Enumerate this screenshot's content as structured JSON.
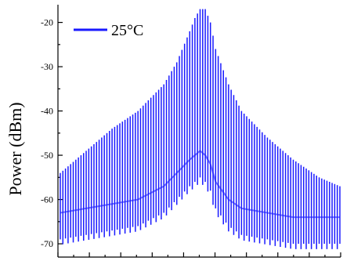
{
  "chart_data": {
    "type": "line",
    "title": "",
    "xlabel": "",
    "ylabel": "Power (dBm)",
    "ylim": [
      -73,
      -16
    ],
    "yticks": [
      "-20",
      "-30",
      "-40",
      "-50",
      "-60",
      "-70"
    ],
    "ytick_values": [
      -20,
      -30,
      -40,
      -50,
      -60,
      -70
    ],
    "grid": false,
    "legend_position": "top-left",
    "series": [
      {
        "name": "25°C",
        "color": "#1a1aff",
        "description_of_form": "longitudinal mode comb",
        "x_index": [
          0,
          10,
          20,
          30,
          40,
          45,
          50,
          52,
          54,
          56,
          58,
          60,
          65,
          70,
          80,
          90,
          100,
          108
        ],
        "peak_dBm": [
          -54,
          -49,
          -44,
          -40,
          -34,
          -29,
          -22,
          -19,
          -17,
          -17,
          -20,
          -26,
          -34,
          -40,
          -46,
          -51,
          -55,
          -57
        ],
        "floor_dBm": [
          -69,
          -68,
          -67,
          -66,
          -63,
          -60,
          -57,
          -56,
          -55,
          -56,
          -58,
          -62,
          -66,
          -68,
          -69,
          -70,
          -70,
          -70
        ]
      }
    ]
  }
}
